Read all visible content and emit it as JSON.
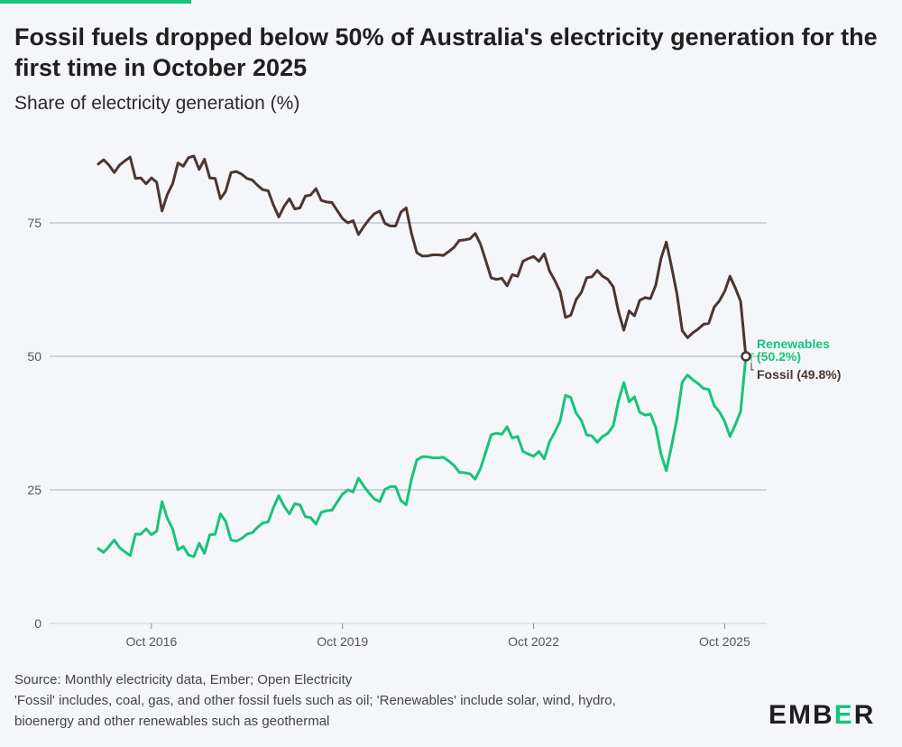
{
  "header": {
    "title": "Fossil fuels dropped below 50% of Australia's electricity generation for the first time in October 2025",
    "subtitle": "Share of electricity generation (%)"
  },
  "footer": {
    "source": "Source: Monthly electricity data, Ember; Open Electricity",
    "note": "'Fossil' includes, coal, gas, and other fossil fuels such as oil; 'Renewables' include solar, wind, hydro, bioenergy and other renewables such as geothermal"
  },
  "logo": {
    "text": "EMBER"
  },
  "colors": {
    "fossil": "#4b3630",
    "renewables": "#17c37b",
    "grid": "#b8bcc8",
    "axis_text": "#555555"
  },
  "chart_data": {
    "type": "line",
    "title": "Fossil fuels dropped below 50% of Australia's electricity generation for the first time in October 2025",
    "ylabel": "Share of electricity generation (%)",
    "xlabel": "",
    "ylim": [
      0,
      88
    ],
    "yticks": [
      0,
      25,
      50,
      75
    ],
    "xticks": [
      {
        "label": "Oct 2016",
        "index": 10
      },
      {
        "label": "Oct 2019",
        "index": 46
      },
      {
        "label": "Oct 2022",
        "index": 82
      },
      {
        "label": "Oct 2025",
        "index": 118
      }
    ],
    "x_start": "Jan 2016",
    "x_end": "Oct 2025",
    "series": [
      {
        "name": "Fossil",
        "end_label": "Fossil (49.8%)",
        "values": [
          86,
          86.8,
          85.8,
          84.4,
          85.8,
          86.6,
          87.3,
          83.3,
          83.4,
          82.3,
          83.4,
          82.6,
          77.2,
          80.3,
          82.3,
          86.2,
          85.6,
          87.2,
          87.5,
          85,
          86.9,
          83.4,
          83.3,
          79.5,
          80.9,
          84.4,
          84.6,
          84.1,
          83.3,
          83,
          82,
          81.2,
          81,
          78.3,
          76.1,
          78.1,
          79.5,
          77.6,
          77.8,
          80,
          80.2,
          81.4,
          79.2,
          78.9,
          78.8,
          77.3,
          75.8,
          75,
          75.4,
          72.8,
          74.3,
          75.6,
          76.7,
          77.2,
          74.9,
          74.4,
          74.4,
          77,
          77.8,
          73,
          69.4,
          68.8,
          68.8,
          69,
          69,
          68.9,
          69.6,
          70.4,
          71.7,
          71.8,
          72,
          73,
          71,
          67.9,
          64.7,
          64.4,
          64.6,
          63.2,
          65.3,
          65,
          67.8,
          68.3,
          68.7,
          67.8,
          69.2,
          66,
          64.2,
          62.1,
          57.3,
          57.7,
          60.6,
          62,
          64.7,
          64.9,
          66.1,
          65,
          64.4,
          63,
          58.3,
          54.9,
          58.5,
          57.6,
          60.5,
          61,
          60.8,
          63.3,
          68.3,
          71.4,
          66.7,
          61.7,
          54.8,
          53.5,
          54.4,
          55.1,
          56,
          56.2,
          59.2,
          60.4,
          62.2,
          65,
          62.8,
          60.3,
          49.8
        ]
      },
      {
        "name": "Renewables",
        "end_label": "Renewables (50.2%)",
        "values": [
          14,
          13.3,
          14.4,
          15.6,
          14.2,
          13.4,
          12.7,
          16.7,
          16.7,
          17.7,
          16.6,
          17.3,
          22.8,
          19.7,
          17.7,
          13.8,
          14.4,
          12.8,
          12.5,
          15,
          13.1,
          16.6,
          16.7,
          20.5,
          19.1,
          15.6,
          15.4,
          15.9,
          16.7,
          17,
          18,
          18.8,
          19,
          21.7,
          23.9,
          21.9,
          20.5,
          22.4,
          22.2,
          20,
          19.8,
          18.6,
          20.8,
          21.1,
          21.2,
          22.7,
          24.2,
          25,
          24.6,
          27.2,
          25.7,
          24.4,
          23.3,
          22.8,
          25.1,
          25.6,
          25.6,
          23,
          22.2,
          27,
          30.6,
          31.2,
          31.2,
          31,
          31,
          31.1,
          30.4,
          29.6,
          28.3,
          28.2,
          28,
          27,
          29,
          32.1,
          35.3,
          35.6,
          35.4,
          36.8,
          34.7,
          35,
          32.2,
          31.7,
          31.3,
          32.2,
          30.8,
          34,
          35.8,
          37.9,
          42.7,
          42.3,
          39.4,
          38,
          35.3,
          35.1,
          33.9,
          35,
          35.6,
          37,
          41.7,
          45.1,
          41.5,
          42.4,
          39.5,
          39,
          39.2,
          36.7,
          31.7,
          28.6,
          33.3,
          38.3,
          45.2,
          46.5,
          45.6,
          44.9,
          44,
          43.8,
          40.8,
          39.6,
          37.8,
          35,
          37.2,
          39.7,
          50.2
        ]
      }
    ]
  }
}
